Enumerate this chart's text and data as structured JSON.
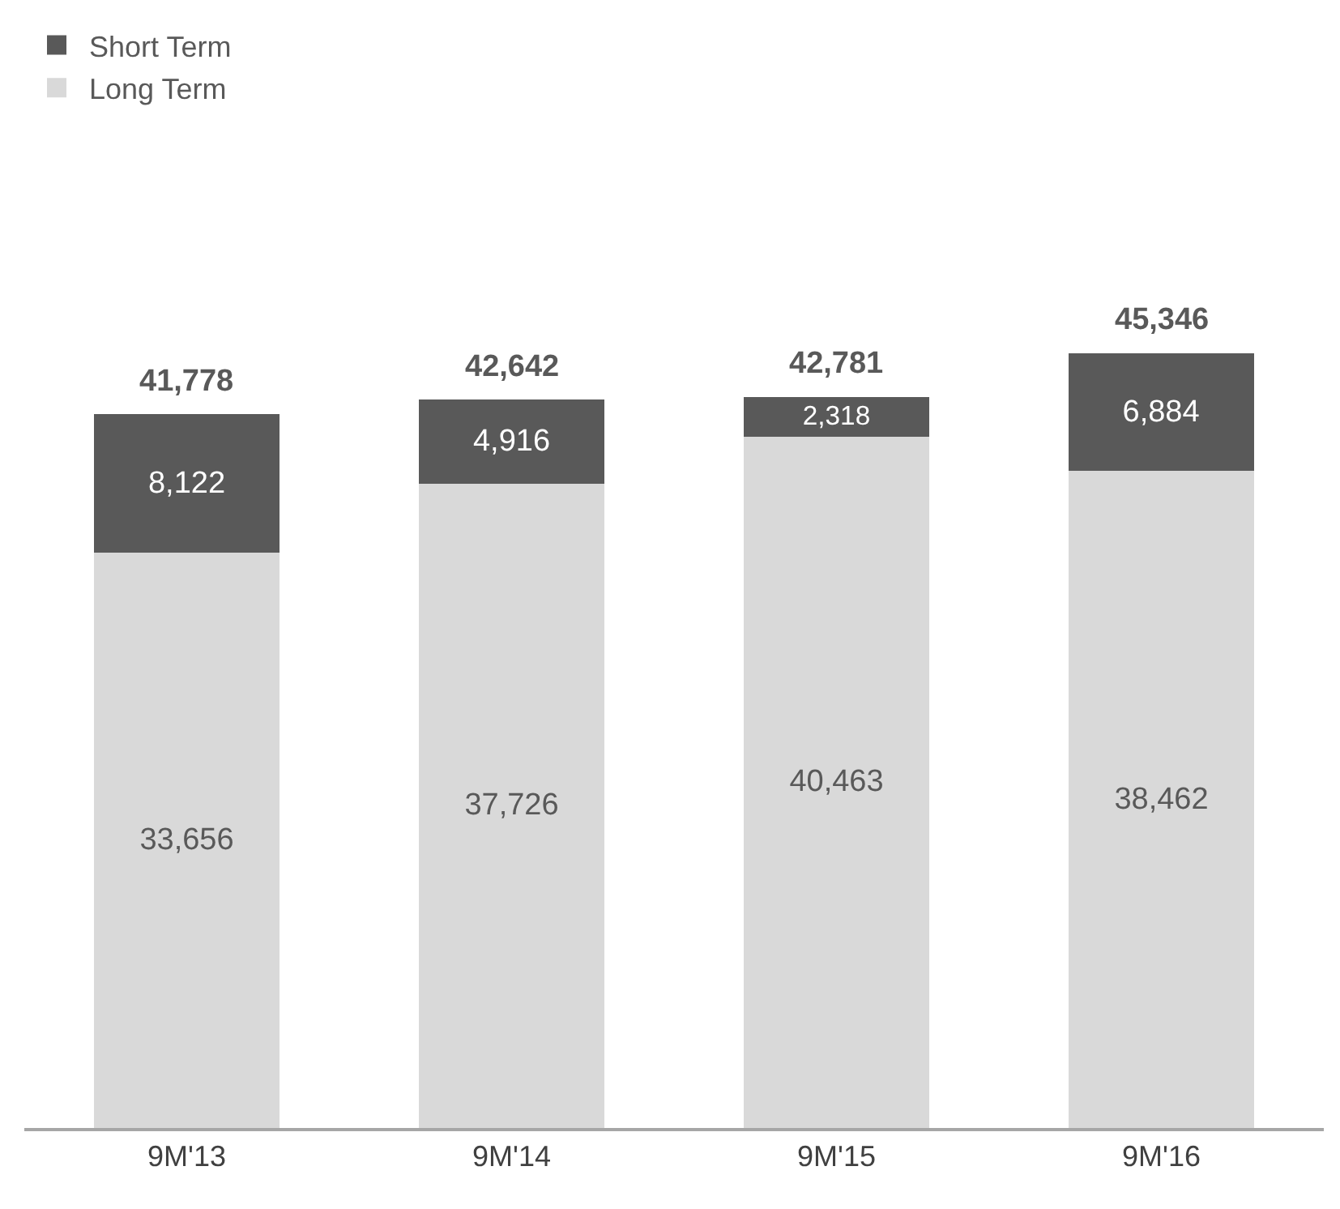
{
  "chart_data": {
    "type": "bar",
    "stacked": true,
    "categories": [
      "9M'13",
      "9M'14",
      "9M'15",
      "9M'16"
    ],
    "series": [
      {
        "name": "Long Term",
        "color": "#d9d9d9",
        "values": [
          33656,
          37726,
          40463,
          38462
        ],
        "value_labels": [
          "33,656",
          "37,726",
          "40,463",
          "38,462"
        ]
      },
      {
        "name": "Short Term",
        "color": "#595959",
        "values": [
          8122,
          4916,
          2318,
          6884
        ],
        "value_labels": [
          "8,122",
          "4,916",
          "2,318",
          "6,884"
        ]
      }
    ],
    "totals": [
      "41,778",
      "42,642",
      "42,781",
      "45,346"
    ],
    "legend": "top left",
    "grid": false
  }
}
